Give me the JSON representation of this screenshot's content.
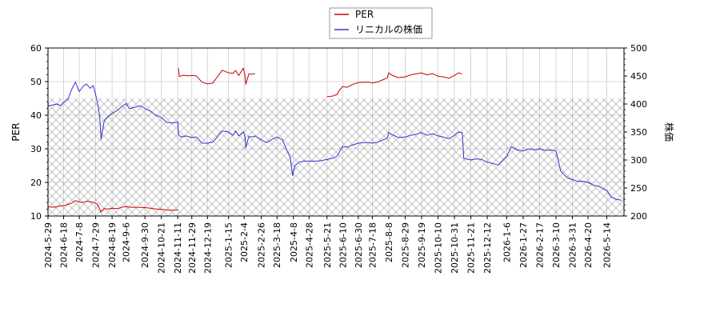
{
  "chart_data": {
    "type": "line",
    "title": "",
    "legend": {
      "placement": "top-center",
      "entries": [
        {
          "label": "PER",
          "color": "#cc0000"
        },
        {
          "label": "リニカルの株価",
          "color": "#3333cc"
        }
      ]
    },
    "y_left": {
      "label": "PER",
      "range": [
        10,
        60
      ],
      "ticks": [
        10,
        20,
        30,
        40,
        50,
        60
      ]
    },
    "y_right": {
      "label": "株価",
      "range": [
        200,
        500
      ],
      "ticks": [
        200,
        250,
        300,
        350,
        400,
        450,
        500
      ]
    },
    "x_range": [
      "2024-05-29",
      "2026-06-05"
    ],
    "x_ticks": [
      "2024-5-29",
      "2024-6-18",
      "2024-7-8",
      "2024-7-29",
      "2024-8-19",
      "2024-9-6",
      "2024-9-30",
      "2024-10-21",
      "2024-11-11",
      "2024-11-29",
      "2024-12-19",
      "2025-1-15",
      "2025-2-4",
      "2025-2-26",
      "2025-3-18",
      "2025-4-8",
      "2025-4-28",
      "2025-5-21",
      "2025-6-10",
      "2025-6-30",
      "2025-7-18",
      "2025-8-8",
      "2025-8-29",
      "2025-9-19",
      "2025-10-10",
      "2025-10-31",
      "2025-11-21",
      "2025-12-12",
      "2026-1-6",
      "2026-1-27",
      "2026-2-17",
      "2026-3-10",
      "2026-3-31",
      "2026-4-20",
      "2026-5-14"
    ],
    "grid": true,
    "hatched_band": {
      "axis": "left",
      "range": [
        10,
        45
      ]
    },
    "series": [
      {
        "name": "PER",
        "axis": "left",
        "color": "#cc0000",
        "segments": [
          [
            [
              "2024-05-29",
              12.8
            ],
            [
              "2024-06-05",
              12.6
            ],
            [
              "2024-06-12",
              12.9
            ],
            [
              "2024-06-20",
              13.2
            ],
            [
              "2024-06-28",
              13.8
            ],
            [
              "2024-07-03",
              14.6
            ],
            [
              "2024-07-08",
              14.2
            ],
            [
              "2024-07-12",
              14.0
            ],
            [
              "2024-07-18",
              14.4
            ],
            [
              "2024-07-25",
              14.1
            ],
            [
              "2024-07-31",
              13.6
            ],
            [
              "2024-08-05",
              11.2
            ],
            [
              "2024-08-09",
              12.2
            ],
            [
              "2024-08-14",
              12.1
            ],
            [
              "2024-08-19",
              12.3
            ],
            [
              "2024-08-26",
              12.2
            ],
            [
              "2024-09-02",
              12.7
            ],
            [
              "2024-09-06",
              12.8
            ],
            [
              "2024-09-12",
              12.6
            ],
            [
              "2024-09-20",
              12.6
            ],
            [
              "2024-09-30",
              12.5
            ],
            [
              "2024-10-07",
              12.3
            ],
            [
              "2024-10-14",
              12.1
            ],
            [
              "2024-10-21",
              12.0
            ],
            [
              "2024-10-28",
              11.8
            ],
            [
              "2024-11-05",
              11.7
            ],
            [
              "2024-11-11",
              11.8
            ]
          ],
          [
            [
              "2024-11-12",
              54.0
            ],
            [
              "2024-11-13",
              51.5
            ],
            [
              "2024-11-18",
              51.9
            ],
            [
              "2024-11-25",
              51.7
            ],
            [
              "2024-11-29",
              51.8
            ],
            [
              "2024-12-05",
              51.7
            ],
            [
              "2024-12-12",
              49.8
            ],
            [
              "2024-12-19",
              49.3
            ],
            [
              "2024-12-26",
              49.6
            ],
            [
              "2025-01-07",
              53.4
            ],
            [
              "2025-01-15",
              52.6
            ],
            [
              "2025-01-21",
              52.5
            ],
            [
              "2025-01-24",
              53.3
            ],
            [
              "2025-01-28",
              51.8
            ],
            [
              "2025-02-03",
              54.0
            ],
            [
              "2025-02-05",
              51.8
            ],
            [
              "2025-02-06",
              49.2
            ],
            [
              "2025-02-10",
              52.3
            ],
            [
              "2025-02-14",
              52.2
            ],
            [
              "2025-02-18",
              52.4
            ]
          ],
          [
            [
              "2025-05-21",
              45.5
            ],
            [
              "2025-05-28",
              45.7
            ],
            [
              "2025-06-03",
              46.2
            ],
            [
              "2025-06-06",
              47.5
            ],
            [
              "2025-06-10",
              48.5
            ],
            [
              "2025-06-16",
              48.3
            ],
            [
              "2025-06-23",
              49.2
            ],
            [
              "2025-06-30",
              49.7
            ],
            [
              "2025-07-07",
              49.8
            ],
            [
              "2025-07-14",
              49.8
            ],
            [
              "2025-07-18",
              49.6
            ],
            [
              "2025-07-25",
              49.9
            ],
            [
              "2025-08-01",
              50.6
            ],
            [
              "2025-08-06",
              51.1
            ],
            [
              "2025-08-08",
              52.6
            ],
            [
              "2025-08-13",
              51.8
            ],
            [
              "2025-08-20",
              51.2
            ],
            [
              "2025-08-29",
              51.4
            ],
            [
              "2025-09-05",
              52.0
            ],
            [
              "2025-09-12",
              52.3
            ],
            [
              "2025-09-19",
              52.6
            ],
            [
              "2025-09-26",
              52.0
            ],
            [
              "2025-10-03",
              52.4
            ],
            [
              "2025-10-10",
              51.6
            ],
            [
              "2025-10-17",
              51.4
            ],
            [
              "2025-10-24",
              51.0
            ],
            [
              "2025-10-31",
              51.8
            ],
            [
              "2025-11-05",
              52.6
            ],
            [
              "2025-11-10",
              52.3
            ]
          ]
        ]
      },
      {
        "name": "リニカルの株価",
        "axis": "right",
        "color": "#3333cc",
        "segments": [
          [
            [
              "2024-05-29",
              396
            ],
            [
              "2024-06-03",
              398
            ],
            [
              "2024-06-10",
              400
            ],
            [
              "2024-06-14",
              397
            ],
            [
              "2024-06-18",
              403
            ],
            [
              "2024-06-24",
              410
            ],
            [
              "2024-06-28",
              425
            ],
            [
              "2024-07-03",
              439
            ],
            [
              "2024-07-08",
              422
            ],
            [
              "2024-07-12",
              430
            ],
            [
              "2024-07-17",
              436
            ],
            [
              "2024-07-22",
              428
            ],
            [
              "2024-07-26",
              433
            ],
            [
              "2024-07-31",
              405
            ],
            [
              "2024-08-03",
              380
            ],
            [
              "2024-08-05",
              337
            ],
            [
              "2024-08-09",
              370
            ],
            [
              "2024-08-13",
              376
            ],
            [
              "2024-08-19",
              383
            ],
            [
              "2024-08-26",
              389
            ],
            [
              "2024-09-02",
              397
            ],
            [
              "2024-09-06",
              401
            ],
            [
              "2024-09-10",
              392
            ],
            [
              "2024-09-17",
              394
            ],
            [
              "2024-09-24",
              397
            ],
            [
              "2024-09-30",
              392
            ],
            [
              "2024-10-07",
              387
            ],
            [
              "2024-10-14",
              380
            ],
            [
              "2024-10-21",
              376
            ],
            [
              "2024-10-28",
              367
            ],
            [
              "2024-11-05",
              366
            ],
            [
              "2024-11-11",
              368
            ],
            [
              "2024-11-12",
              345
            ],
            [
              "2024-11-15",
              341
            ],
            [
              "2024-11-22",
              343
            ],
            [
              "2024-11-29",
              340
            ],
            [
              "2024-12-05",
              341
            ],
            [
              "2024-12-12",
              330
            ],
            [
              "2024-12-19",
              330
            ],
            [
              "2024-12-26",
              332
            ],
            [
              "2025-01-07",
              352
            ],
            [
              "2025-01-15",
              350
            ],
            [
              "2025-01-21",
              344
            ],
            [
              "2025-01-24",
              352
            ],
            [
              "2025-01-28",
              343
            ],
            [
              "2025-02-03",
              350
            ],
            [
              "2025-02-05",
              343
            ],
            [
              "2025-02-06",
              322
            ],
            [
              "2025-02-10",
              342
            ],
            [
              "2025-02-14",
              341
            ],
            [
              "2025-02-18",
              343
            ],
            [
              "2025-02-26",
              336
            ],
            [
              "2025-03-05",
              331
            ],
            [
              "2025-03-12",
              337
            ],
            [
              "2025-03-18",
              341
            ],
            [
              "2025-03-25",
              336
            ],
            [
              "2025-03-31",
              316
            ],
            [
              "2025-04-04",
              305
            ],
            [
              "2025-04-07",
              272
            ],
            [
              "2025-04-10",
              290
            ],
            [
              "2025-04-15",
              296
            ],
            [
              "2025-04-21",
              298
            ],
            [
              "2025-04-28",
              298
            ],
            [
              "2025-05-07",
              298
            ],
            [
              "2025-05-14",
              299
            ],
            [
              "2025-05-21",
              301
            ],
            [
              "2025-05-28",
              303
            ],
            [
              "2025-06-03",
              307
            ],
            [
              "2025-06-06",
              315
            ],
            [
              "2025-06-10",
              324
            ],
            [
              "2025-06-16",
              323
            ],
            [
              "2025-06-23",
              327
            ],
            [
              "2025-06-30",
              330
            ],
            [
              "2025-07-07",
              331
            ],
            [
              "2025-07-14",
              331
            ],
            [
              "2025-07-18",
              330
            ],
            [
              "2025-07-25",
              332
            ],
            [
              "2025-08-01",
              336
            ],
            [
              "2025-08-06",
              339
            ],
            [
              "2025-08-08",
              349
            ],
            [
              "2025-08-13",
              345
            ],
            [
              "2025-08-20",
              340
            ],
            [
              "2025-08-29",
              341
            ],
            [
              "2025-09-05",
              344
            ],
            [
              "2025-09-12",
              346
            ],
            [
              "2025-09-19",
              349
            ],
            [
              "2025-09-26",
              344
            ],
            [
              "2025-10-03",
              347
            ],
            [
              "2025-10-10",
              343
            ],
            [
              "2025-10-17",
              341
            ],
            [
              "2025-10-24",
              338
            ],
            [
              "2025-10-31",
              344
            ],
            [
              "2025-11-05",
              350
            ],
            [
              "2025-11-10",
              349
            ],
            [
              "2025-11-12",
              303
            ],
            [
              "2025-11-21",
              300
            ],
            [
              "2025-11-28",
              302
            ],
            [
              "2025-12-05",
              301
            ],
            [
              "2025-12-12",
              296
            ],
            [
              "2025-12-19",
              294
            ],
            [
              "2025-12-26",
              291
            ],
            [
              "2026-01-06",
              307
            ],
            [
              "2026-01-12",
              324
            ],
            [
              "2026-01-19",
              318
            ],
            [
              "2026-01-27",
              316
            ],
            [
              "2026-02-03",
              320
            ],
            [
              "2026-02-10",
              318
            ],
            [
              "2026-02-17",
              320
            ],
            [
              "2026-02-24",
              317
            ],
            [
              "2026-03-03",
              318
            ],
            [
              "2026-03-10",
              316
            ],
            [
              "2026-03-16",
              280
            ],
            [
              "2026-03-20",
              274
            ],
            [
              "2026-03-25",
              268
            ],
            [
              "2026-03-31",
              265
            ],
            [
              "2026-04-07",
              262
            ],
            [
              "2026-04-14",
              262
            ],
            [
              "2026-04-20",
              260
            ],
            [
              "2026-04-27",
              255
            ],
            [
              "2026-05-04",
              253
            ],
            [
              "2026-05-11",
              247
            ],
            [
              "2026-05-14",
              246
            ],
            [
              "2026-05-19",
              234
            ],
            [
              "2026-05-26",
              230
            ],
            [
              "2026-06-02",
              228
            ]
          ]
        ]
      }
    ]
  }
}
